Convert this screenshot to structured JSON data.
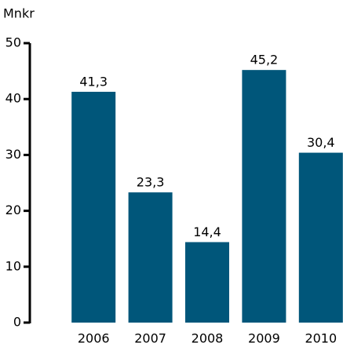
{
  "chart_data": {
    "type": "bar",
    "y_axis_label": "Mnkr",
    "categories": [
      "2006",
      "2007",
      "2008",
      "2009",
      "2010"
    ],
    "values": [
      41.3,
      23.3,
      14.4,
      45.2,
      30.4
    ],
    "value_labels": [
      "41,3",
      "23,3",
      "14,4",
      "45,2",
      "30,4"
    ],
    "color": "#00567a",
    "ylim": [
      0,
      50
    ],
    "yticks": [
      0,
      10,
      20,
      30,
      40,
      50
    ],
    "grid": false
  }
}
